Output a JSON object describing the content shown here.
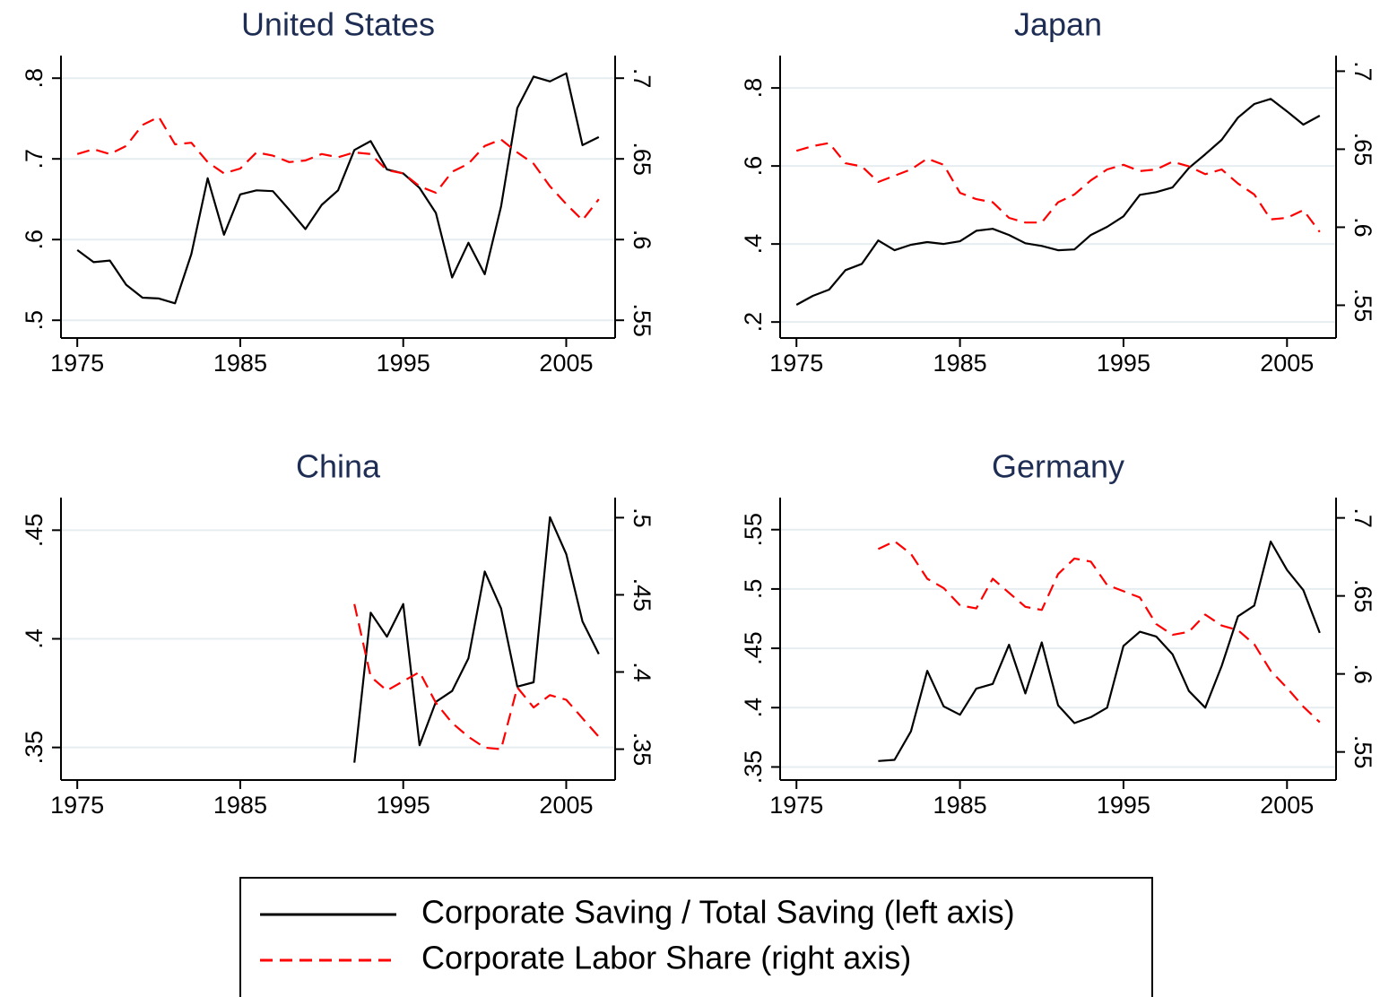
{
  "chart_data": [
    {
      "type": "line",
      "title": "United States",
      "x": [
        1975,
        1976,
        1977,
        1978,
        1979,
        1980,
        1981,
        1982,
        1983,
        1984,
        1985,
        1986,
        1987,
        1988,
        1989,
        1990,
        1991,
        1992,
        1993,
        1994,
        1995,
        1996,
        1997,
        1998,
        1999,
        2000,
        2001,
        2002,
        2003,
        2004,
        2005,
        2006,
        2007
      ],
      "series": [
        {
          "name": "Corporate Saving / Total Saving (left axis)",
          "color": "#000000",
          "line_style": "solid",
          "values": [
            0.587,
            0.572,
            0.574,
            0.544,
            0.528,
            0.527,
            0.521,
            0.582,
            0.676,
            0.606,
            0.656,
            0.661,
            0.66,
            0.637,
            0.613,
            0.643,
            0.661,
            0.711,
            0.722,
            0.687,
            0.682,
            0.664,
            0.633,
            0.553,
            0.596,
            0.557,
            0.641,
            0.763,
            0.802,
            0.796,
            0.806,
            0.717,
            0.727
          ]
        },
        {
          "name": "Corporate Labor Share (right axis)",
          "color": "#ff0000",
          "line_style": "dashed",
          "axis": "y2",
          "values": [
            0.653,
            0.656,
            0.653,
            0.658,
            0.671,
            0.676,
            0.659,
            0.66,
            0.648,
            0.641,
            0.644,
            0.654,
            0.652,
            0.648,
            0.649,
            0.653,
            0.651,
            0.654,
            0.653,
            0.643,
            0.641,
            0.633,
            0.629,
            0.642,
            0.647,
            0.658,
            0.662,
            0.654,
            0.647,
            0.633,
            0.622,
            0.612,
            0.625
          ]
        }
      ],
      "xlim": [
        1974,
        2008
      ],
      "xticks": [
        1975,
        1985,
        1995,
        2005
      ],
      "ylim": [
        0.478,
        0.828
      ],
      "yticks": [
        {
          "value": 0.5,
          "label": ".5"
        },
        {
          "value": 0.6,
          "label": ".6"
        },
        {
          "value": 0.7,
          "label": ".7"
        },
        {
          "value": 0.8,
          "label": ".8"
        }
      ],
      "y2lim": [
        0.539,
        0.714
      ],
      "y2ticks": [
        {
          "value": 0.55,
          "label": ".55"
        },
        {
          "value": 0.6,
          "label": ".6"
        },
        {
          "value": 0.65,
          "label": ".65"
        },
        {
          "value": 0.7,
          "label": ".7"
        }
      ],
      "grid": true
    },
    {
      "type": "line",
      "title": "Japan",
      "x": [
        1975,
        1976,
        1977,
        1978,
        1979,
        1980,
        1981,
        1982,
        1983,
        1984,
        1985,
        1986,
        1987,
        1988,
        1989,
        1990,
        1991,
        1992,
        1993,
        1994,
        1995,
        1996,
        1997,
        1998,
        1999,
        2000,
        2001,
        2002,
        2003,
        2004,
        2005,
        2006,
        2007
      ],
      "series": [
        {
          "color": "#000000",
          "line_style": "solid",
          "values": [
            0.244,
            0.267,
            0.283,
            0.333,
            0.349,
            0.409,
            0.384,
            0.398,
            0.405,
            0.4,
            0.407,
            0.434,
            0.439,
            0.423,
            0.402,
            0.395,
            0.384,
            0.386,
            0.423,
            0.444,
            0.471,
            0.526,
            0.533,
            0.545,
            0.595,
            0.63,
            0.667,
            0.724,
            0.759,
            0.772,
            0.74,
            0.706,
            0.729
          ]
        },
        {
          "color": "#ff0000",
          "line_style": "dashed",
          "axis": "y2",
          "values": [
            0.649,
            0.652,
            0.654,
            0.641,
            0.639,
            0.629,
            0.633,
            0.637,
            0.644,
            0.64,
            0.622,
            0.618,
            0.616,
            0.606,
            0.603,
            0.603,
            0.616,
            0.621,
            0.63,
            0.637,
            0.64,
            0.636,
            0.637,
            0.642,
            0.639,
            0.634,
            0.637,
            0.628,
            0.621,
            0.605,
            0.606,
            0.611,
            0.597
          ]
        }
      ],
      "xlim": [
        1974,
        2008
      ],
      "xticks": [
        1975,
        1985,
        1995,
        2005
      ],
      "ylim": [
        0.159,
        0.883
      ],
      "yticks": [
        {
          "value": 0.2,
          "label": ".2"
        },
        {
          "value": 0.4,
          "label": ".4"
        },
        {
          "value": 0.6,
          "label": ".6"
        },
        {
          "value": 0.8,
          "label": ".8"
        }
      ],
      "y2lim": [
        0.529,
        0.71
      ],
      "y2ticks": [
        {
          "value": 0.55,
          "label": ".55"
        },
        {
          "value": 0.6,
          "label": ".6"
        },
        {
          "value": 0.65,
          "label": ".65"
        },
        {
          "value": 0.7,
          "label": ".7"
        }
      ],
      "grid": true
    },
    {
      "type": "line",
      "title": "China",
      "x": [
        1992,
        1993,
        1994,
        1995,
        1996,
        1997,
        1998,
        1999,
        2000,
        2001,
        2002,
        2003,
        2004,
        2005,
        2006,
        2007
      ],
      "series": [
        {
          "color": "#000000",
          "line_style": "solid",
          "values": [
            0.343,
            0.412,
            0.401,
            0.416,
            0.351,
            0.371,
            0.376,
            0.391,
            0.431,
            0.414,
            0.378,
            0.38,
            0.456,
            0.439,
            0.408,
            0.393
          ]
        },
        {
          "color": "#ff0000",
          "line_style": "dashed",
          "axis": "y2",
          "values": [
            0.444,
            0.397,
            0.388,
            0.394,
            0.4,
            0.38,
            0.367,
            0.358,
            0.351,
            0.35,
            0.39,
            0.377,
            0.385,
            0.382,
            0.37,
            0.358
          ]
        }
      ],
      "xlim": [
        1974,
        2008
      ],
      "xticks": [
        1975,
        1985,
        1995,
        2005
      ],
      "ylim": [
        0.335,
        0.465
      ],
      "yticks": [
        {
          "value": 0.35,
          "label": ".35"
        },
        {
          "value": 0.4,
          "label": ".4"
        },
        {
          "value": 0.45,
          "label": ".45"
        }
      ],
      "y2lim": [
        0.33,
        0.513
      ],
      "y2ticks": [
        {
          "value": 0.35,
          "label": ".35"
        },
        {
          "value": 0.4,
          "label": ".4"
        },
        {
          "value": 0.45,
          "label": ".45"
        },
        {
          "value": 0.5,
          "label": ".5"
        }
      ],
      "grid": true
    },
    {
      "type": "line",
      "title": "Germany",
      "x": [
        1980,
        1981,
        1982,
        1983,
        1984,
        1985,
        1986,
        1987,
        1988,
        1989,
        1990,
        1991,
        1992,
        1993,
        1994,
        1995,
        1996,
        1997,
        1998,
        1999,
        2000,
        2001,
        2002,
        2003,
        2004,
        2005,
        2006,
        2007
      ],
      "series": [
        {
          "color": "#000000",
          "line_style": "solid",
          "values": [
            0.355,
            0.356,
            0.38,
            0.431,
            0.401,
            0.394,
            0.416,
            0.42,
            0.453,
            0.412,
            0.455,
            0.402,
            0.387,
            0.392,
            0.4,
            0.452,
            0.464,
            0.46,
            0.445,
            0.414,
            0.4,
            0.435,
            0.477,
            0.486,
            0.54,
            0.516,
            0.499,
            0.463
          ]
        },
        {
          "color": "#ff0000",
          "line_style": "dashed",
          "axis": "y2",
          "values": [
            0.68,
            0.685,
            0.677,
            0.661,
            0.655,
            0.644,
            0.642,
            0.661,
            0.652,
            0.643,
            0.641,
            0.664,
            0.674,
            0.672,
            0.657,
            0.653,
            0.649,
            0.632,
            0.625,
            0.627,
            0.638,
            0.631,
            0.628,
            0.619,
            0.602,
            0.591,
            0.579,
            0.569
          ]
        }
      ],
      "xlim": [
        1974,
        2008
      ],
      "xticks": [
        1975,
        1985,
        1995,
        2005
      ],
      "ylim": [
        0.339,
        0.577
      ],
      "yticks": [
        {
          "value": 0.35,
          "label": ".35"
        },
        {
          "value": 0.4,
          "label": ".4"
        },
        {
          "value": 0.45,
          "label": ".45"
        },
        {
          "value": 0.5,
          "label": ".5"
        },
        {
          "value": 0.55,
          "label": ".55"
        }
      ],
      "y2lim": [
        0.532,
        0.713
      ],
      "y2ticks": [
        {
          "value": 0.55,
          "label": ".55"
        },
        {
          "value": 0.6,
          "label": ".6"
        },
        {
          "value": 0.65,
          "label": ".65"
        },
        {
          "value": 0.7,
          "label": ".7"
        }
      ],
      "grid": true
    }
  ]
}
